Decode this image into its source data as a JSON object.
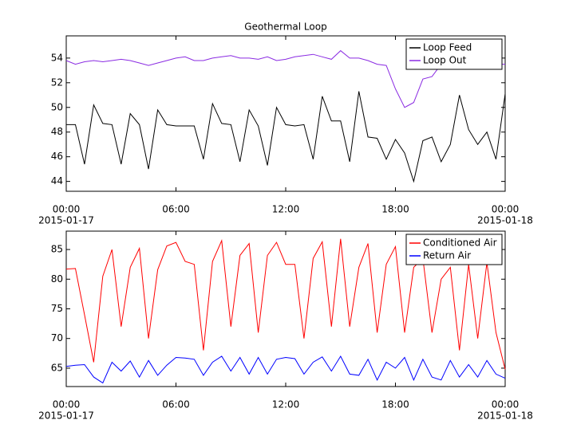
{
  "chart_data": [
    {
      "type": "line",
      "title": "Geothermal Loop",
      "x": [
        "2015-01-17 00:00",
        "2015-01-17 00:30",
        "2015-01-17 01:00",
        "2015-01-17 01:30",
        "2015-01-17 02:00",
        "2015-01-17 02:30",
        "2015-01-17 03:00",
        "2015-01-17 03:30",
        "2015-01-17 04:00",
        "2015-01-17 04:30",
        "2015-01-17 05:00",
        "2015-01-17 05:30",
        "2015-01-17 06:00",
        "2015-01-17 06:30",
        "2015-01-17 07:00",
        "2015-01-17 07:30",
        "2015-01-17 08:00",
        "2015-01-17 08:30",
        "2015-01-17 09:00",
        "2015-01-17 09:30",
        "2015-01-17 10:00",
        "2015-01-17 10:30",
        "2015-01-17 11:00",
        "2015-01-17 11:30",
        "2015-01-17 12:00",
        "2015-01-17 12:30",
        "2015-01-17 13:00",
        "2015-01-17 13:30",
        "2015-01-17 14:00",
        "2015-01-17 14:30",
        "2015-01-17 15:00",
        "2015-01-17 15:30",
        "2015-01-17 16:00",
        "2015-01-17 16:30",
        "2015-01-17 17:00",
        "2015-01-17 17:30",
        "2015-01-17 18:00",
        "2015-01-17 18:30",
        "2015-01-17 19:00",
        "2015-01-17 19:30",
        "2015-01-17 20:00",
        "2015-01-17 20:30",
        "2015-01-17 21:00",
        "2015-01-17 21:30",
        "2015-01-17 22:00",
        "2015-01-17 22:30",
        "2015-01-17 23:00",
        "2015-01-17 23:30",
        "2015-01-18 00:00"
      ],
      "series": [
        {
          "name": "Loop Feed",
          "color": "#000000",
          "values": [
            48.6,
            48.6,
            45.4,
            50.2,
            48.7,
            48.6,
            45.4,
            49.5,
            48.6,
            45.0,
            49.8,
            48.6,
            48.5,
            48.5,
            48.5,
            45.8,
            50.3,
            48.7,
            48.6,
            45.6,
            49.8,
            48.5,
            45.3,
            50.0,
            48.6,
            48.5,
            48.6,
            45.8,
            50.9,
            48.9,
            48.9,
            45.6,
            51.3,
            47.6,
            47.5,
            45.8,
            47.4,
            46.3,
            44.0,
            47.3,
            47.6,
            45.6,
            47.0,
            51.0,
            48.2,
            47.0,
            48.0,
            45.8,
            51.1
          ]
        },
        {
          "name": "Loop Out",
          "color": "#8a2be2",
          "values": [
            53.8,
            53.5,
            53.7,
            53.8,
            53.7,
            53.8,
            53.9,
            53.8,
            53.6,
            53.4,
            53.6,
            53.8,
            54.0,
            54.1,
            53.8,
            53.8,
            54.0,
            54.1,
            54.2,
            54.0,
            54.0,
            53.9,
            54.1,
            53.8,
            53.9,
            54.1,
            54.2,
            54.3,
            54.1,
            53.9,
            54.6,
            54.0,
            54.0,
            53.8,
            53.5,
            53.4,
            51.5,
            50.0,
            50.4,
            52.3,
            52.5,
            53.5,
            53.3,
            53.4,
            53.5,
            53.6,
            53.6,
            53.5,
            53.5
          ]
        }
      ],
      "xlim": [
        "2015-01-17 00:00",
        "2015-01-18 00:00"
      ],
      "xticks": [
        {
          "value": "2015-01-17 00:00",
          "label": "00:00",
          "date": "2015-01-17"
        },
        {
          "value": "2015-01-17 06:00",
          "label": "06:00"
        },
        {
          "value": "2015-01-17 12:00",
          "label": "12:00"
        },
        {
          "value": "2015-01-17 18:00",
          "label": "18:00"
        },
        {
          "value": "2015-01-18 00:00",
          "label": "00:00",
          "date": "2015-01-18"
        }
      ],
      "ylim": [
        43.2,
        55.8
      ],
      "yticks": [
        44,
        46,
        48,
        50,
        52,
        54
      ],
      "legend": "upper right"
    },
    {
      "type": "line",
      "x": [
        "2015-01-17 00:00",
        "2015-01-17 00:30",
        "2015-01-17 01:00",
        "2015-01-17 01:30",
        "2015-01-17 02:00",
        "2015-01-17 02:30",
        "2015-01-17 03:00",
        "2015-01-17 03:30",
        "2015-01-17 04:00",
        "2015-01-17 04:30",
        "2015-01-17 05:00",
        "2015-01-17 05:30",
        "2015-01-17 06:00",
        "2015-01-17 06:30",
        "2015-01-17 07:00",
        "2015-01-17 07:30",
        "2015-01-17 08:00",
        "2015-01-17 08:30",
        "2015-01-17 09:00",
        "2015-01-17 09:30",
        "2015-01-17 10:00",
        "2015-01-17 10:30",
        "2015-01-17 11:00",
        "2015-01-17 11:30",
        "2015-01-17 12:00",
        "2015-01-17 12:30",
        "2015-01-17 13:00",
        "2015-01-17 13:30",
        "2015-01-17 14:00",
        "2015-01-17 14:30",
        "2015-01-17 15:00",
        "2015-01-17 15:30",
        "2015-01-17 16:00",
        "2015-01-17 16:30",
        "2015-01-17 17:00",
        "2015-01-17 17:30",
        "2015-01-17 18:00",
        "2015-01-17 18:30",
        "2015-01-17 19:00",
        "2015-01-17 19:30",
        "2015-01-17 20:00",
        "2015-01-17 20:30",
        "2015-01-17 21:00",
        "2015-01-17 21:30",
        "2015-01-17 22:00",
        "2015-01-17 22:30",
        "2015-01-17 23:00",
        "2015-01-17 23:30",
        "2015-01-18 00:00"
      ],
      "series": [
        {
          "name": "Conditioned Air",
          "color": "#ff0000",
          "values": [
            81.7,
            81.8,
            74,
            66,
            80.5,
            85.0,
            72,
            82,
            85.2,
            70,
            81.6,
            85.6,
            86.2,
            83,
            82.5,
            68,
            83,
            86.5,
            72,
            84,
            86,
            71,
            84,
            86.2,
            82.5,
            82.5,
            70,
            83.5,
            86.3,
            72,
            86.8,
            72,
            82,
            86,
            71,
            82.5,
            85.5,
            71,
            82,
            83.5,
            71,
            80,
            82,
            68,
            82.5,
            70,
            82.8,
            71,
            64.8
          ]
        },
        {
          "name": "Return Air",
          "color": "#0000ff",
          "values": [
            65.3,
            65.5,
            65.6,
            63.5,
            62.5,
            66.0,
            64.5,
            66.2,
            63.5,
            66.3,
            63.8,
            65.5,
            66.8,
            66.7,
            66.5,
            63.8,
            66.0,
            67.0,
            64.5,
            66.8,
            64.0,
            66.8,
            64.0,
            66.5,
            66.8,
            66.6,
            64.0,
            66.0,
            66.9,
            64.5,
            67.0,
            64.0,
            63.8,
            66.5,
            63.0,
            66.0,
            65.0,
            66.8,
            63.0,
            66.5,
            63.5,
            63.0,
            66.3,
            63.5,
            65.6,
            63.5,
            66.3,
            64.0,
            63.3
          ]
        }
      ],
      "xlim": [
        "2015-01-17 00:00",
        "2015-01-18 00:00"
      ],
      "xticks": [
        {
          "value": "2015-01-17 00:00",
          "label": "00:00",
          "date": "2015-01-17"
        },
        {
          "value": "2015-01-17 06:00",
          "label": "06:00"
        },
        {
          "value": "2015-01-17 12:00",
          "label": "12:00"
        },
        {
          "value": "2015-01-17 18:00",
          "label": "18:00"
        },
        {
          "value": "2015-01-18 00:00",
          "label": "00:00",
          "date": "2015-01-18"
        }
      ],
      "ylim": [
        61.9,
        88.1
      ],
      "yticks": [
        65,
        70,
        75,
        80,
        85
      ],
      "legend": "upper right"
    }
  ]
}
